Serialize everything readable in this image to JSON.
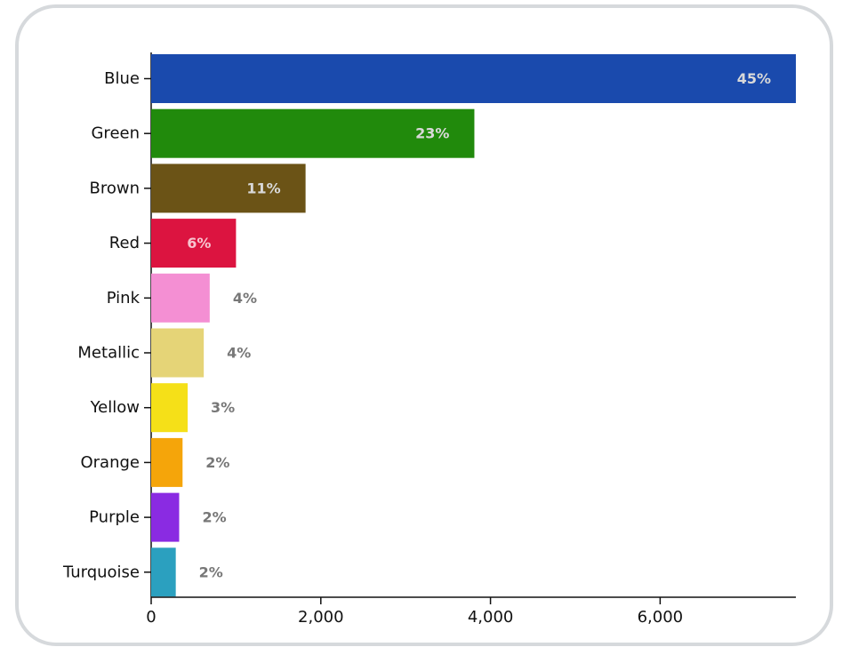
{
  "chart_data": {
    "type": "bar",
    "orientation": "horizontal",
    "categories": [
      "Blue",
      "Green",
      "Brown",
      "Red",
      "Pink",
      "Metallic",
      "Yellow",
      "Orange",
      "Purple",
      "Turquoise"
    ],
    "values": [
      7600,
      3810,
      1820,
      1000,
      690,
      620,
      430,
      370,
      330,
      290
    ],
    "percent_labels": [
      "45%",
      "23%",
      "11%",
      "6%",
      "4%",
      "4%",
      "3%",
      "2%",
      "2%",
      "2%"
    ],
    "colors": [
      "#1a4aad",
      "#218a0c",
      "#6b5316",
      "#dc1440",
      "#f48fd3",
      "#e5d477",
      "#f5e018",
      "#f5a50a",
      "#8a2be2",
      "#2ba0bf"
    ],
    "x_ticks": [
      0,
      2000,
      4000,
      6000
    ],
    "x_tick_labels": [
      "0",
      "2,000",
      "4,000",
      "6,000"
    ],
    "xlim": [
      0,
      7600
    ],
    "title": "",
    "xlabel": "",
    "ylabel": "",
    "grid": false,
    "legend": "none"
  }
}
